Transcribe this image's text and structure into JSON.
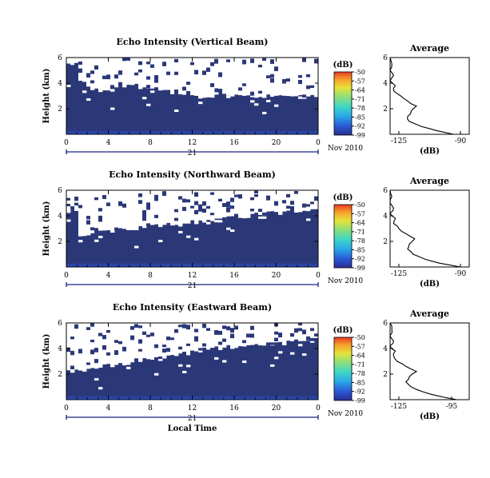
{
  "chart_data": [
    {
      "type": "heatmap",
      "title": "Echo Intensity (Vertical Beam)",
      "ylabel": "Height (km)",
      "x_ticks": [
        "0",
        "4",
        "8",
        "12",
        "16",
        "20",
        "0"
      ],
      "y_ticks": [
        "6",
        "4",
        "2"
      ],
      "xlim": [
        0,
        24
      ],
      "ylim": [
        0,
        6
      ],
      "date_day": "21",
      "date_label": "Nov 2010",
      "colorbar": {
        "unit": "(dB)",
        "ticks": [
          "-50",
          "-57",
          "-64",
          "-71",
          "-78",
          "-85",
          "-92",
          "-99"
        ],
        "range": [
          -99,
          -50
        ]
      },
      "echo_top_km": [
        5.2,
        4.1,
        3.6,
        3.4,
        3.5,
        3.7,
        3.8,
        3.6,
        3.5,
        3.4,
        3.2,
        3.1,
        2.9,
        3.0,
        3.5,
        3.1,
        3.0,
        3.0,
        3.0,
        3.0,
        3.0,
        3.0,
        2.9,
        3.0
      ],
      "average": {
        "title": "Average",
        "xlabel": "(dB)",
        "x_ticks": [
          "-125",
          "-90"
        ],
        "y_ticks": [
          "6",
          "4",
          "2"
        ],
        "xlim": [
          -130,
          -85
        ],
        "ylim": [
          0,
          6
        ],
        "profile": {
          "height_km": [
            0,
            0.3,
            0.6,
            1.0,
            1.4,
            1.8,
            2.2,
            2.6,
            3.0,
            3.4,
            3.8,
            4.2,
            4.6,
            5.0,
            5.5,
            6.0
          ],
          "db": [
            -94,
            -104,
            -112,
            -119,
            -120,
            -118,
            -115,
            -120,
            -124,
            -128,
            -127,
            -130,
            -128,
            -130,
            -129,
            -130
          ]
        }
      }
    },
    {
      "type": "heatmap",
      "title": "Echo Intensity (Northward Beam)",
      "ylabel": "Height (km)",
      "x_ticks": [
        "0",
        "4",
        "8",
        "12",
        "16",
        "20",
        "0"
      ],
      "y_ticks": [
        "6",
        "4",
        "2"
      ],
      "xlim": [
        0,
        24
      ],
      "ylim": [
        0,
        6
      ],
      "date_day": "21",
      "date_label": "Nov 2010",
      "colorbar": {
        "unit": "(dB)",
        "ticks": [
          "-50",
          "-57",
          "-64",
          "-71",
          "-78",
          "-85",
          "-92",
          "-99"
        ],
        "range": [
          -99,
          -50
        ]
      },
      "echo_top_km": [
        4.4,
        2.4,
        2.6,
        2.7,
        2.8,
        2.9,
        3.0,
        3.1,
        3.2,
        3.3,
        3.3,
        3.4,
        3.5,
        3.6,
        3.7,
        3.8,
        3.9,
        4.0,
        4.1,
        4.2,
        4.2,
        4.3,
        4.4,
        4.4
      ],
      "average": {
        "title": "Average",
        "xlabel": "(dB)",
        "x_ticks": [
          "-125",
          "-90"
        ],
        "y_ticks": [
          "6",
          "4",
          "2"
        ],
        "xlim": [
          -130,
          -85
        ],
        "ylim": [
          0,
          6
        ],
        "profile": {
          "height_km": [
            0,
            0.3,
            0.6,
            1.0,
            1.4,
            1.8,
            2.2,
            2.6,
            3.0,
            3.4,
            3.8,
            4.2,
            4.6,
            5.0,
            5.5,
            6.0
          ],
          "db": [
            -90,
            -102,
            -110,
            -117,
            -120,
            -119,
            -116,
            -121,
            -125,
            -128,
            -127,
            -130,
            -128,
            -130,
            -129,
            -130
          ]
        }
      }
    },
    {
      "type": "heatmap",
      "title": "Echo Intensity (Eastward Beam)",
      "ylabel": "Height (km)",
      "xlabel": "Local Time",
      "x_ticks": [
        "0",
        "4",
        "8",
        "12",
        "16",
        "20",
        "0"
      ],
      "y_ticks": [
        "6",
        "4",
        "2"
      ],
      "xlim": [
        0,
        24
      ],
      "ylim": [
        0,
        6
      ],
      "date_day": "21",
      "date_label": "Nov 2010",
      "colorbar": {
        "unit": "(dB)",
        "ticks": [
          "-50",
          "-57",
          "-64",
          "-71",
          "-78",
          "-85",
          "-92",
          "-99"
        ],
        "range": [
          -99,
          -50
        ]
      },
      "echo_top_km": [
        2.2,
        2.3,
        2.5,
        2.6,
        2.7,
        2.8,
        3.0,
        3.1,
        3.2,
        3.3,
        3.5,
        3.6,
        3.8,
        3.9,
        4.0,
        4.1,
        4.2,
        4.2,
        4.3,
        4.4,
        4.4,
        4.5,
        4.5,
        4.6
      ],
      "average": {
        "title": "Average",
        "xlabel": "(dB)",
        "x_ticks": [
          "-125",
          "-95"
        ],
        "y_ticks": [
          "6",
          "4",
          "2"
        ],
        "xlim": [
          -130,
          -85
        ],
        "ylim": [
          0,
          6
        ],
        "profile": {
          "height_km": [
            0,
            0.3,
            0.6,
            1.0,
            1.4,
            1.8,
            2.2,
            2.6,
            3.0,
            3.4,
            3.8,
            4.2,
            4.6,
            5.0,
            5.5,
            6.0
          ],
          "db": [
            -92,
            -103,
            -111,
            -118,
            -121,
            -119,
            -115,
            -121,
            -126,
            -128,
            -127,
            -130,
            -128,
            -130,
            -129,
            -130
          ]
        }
      }
    }
  ],
  "colors": {
    "background_echo": "#2b3878",
    "surface_echo": "#2a4bd8",
    "no_echo": "#ffffff",
    "colorbar": [
      "#2a2e92",
      "#2a5bd8",
      "#2aa9e9",
      "#3fd6c8",
      "#8be07a",
      "#e6e23a",
      "#f6a12c",
      "#e83a22"
    ]
  }
}
